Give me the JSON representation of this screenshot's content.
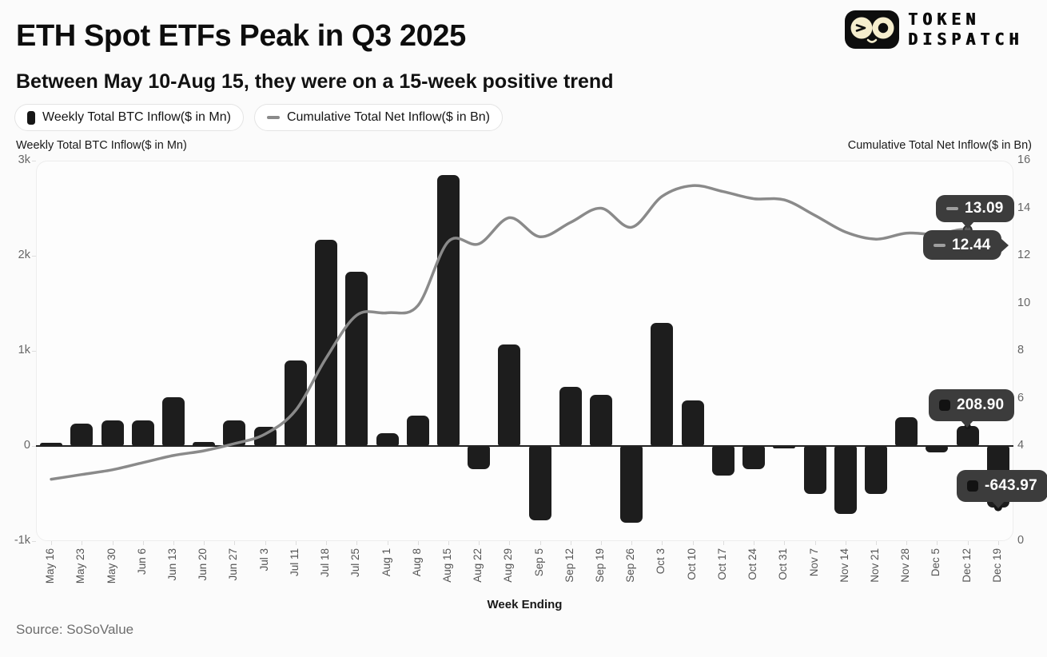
{
  "header": {
    "title": "ETH Spot ETFs Peak in Q3 2025",
    "subtitle": "Between May 10-Aug 15, they were on a 15-week positive trend",
    "brand": {
      "line1": "TOKEN",
      "line2": "DISPATCH"
    }
  },
  "legend": [
    {
      "label": "Weekly Total BTC Inflow($ in Mn)",
      "icon": "bar-swatch"
    },
    {
      "label": "Cumulative Total Net Inflow($ in Bn)",
      "icon": "line-swatch"
    }
  ],
  "axes": {
    "left_title": "Weekly Total BTC Inflow($ in Mn)",
    "right_title": "Cumulative Total Net Inflow($ in Bn)",
    "x_title": "Week Ending",
    "left_ticks": [
      "3k",
      "2k",
      "1k",
      "0",
      "-1k"
    ],
    "left_tick_values": [
      3000,
      2000,
      1000,
      0,
      -1000
    ],
    "right_ticks": [
      "16",
      "14",
      "12",
      "10",
      "8",
      "6",
      "4",
      "2",
      "0"
    ],
    "right_tick_values": [
      16,
      14,
      12,
      10,
      8,
      6,
      4,
      2,
      0
    ]
  },
  "annotations": {
    "line_dec12": {
      "label": "13.09",
      "icon": "dash"
    },
    "line_dec19": {
      "label": "12.44",
      "icon": "dash"
    },
    "bar_dec12": {
      "label": "208.90",
      "icon": "square"
    },
    "bar_dec19": {
      "label": "-643.97",
      "icon": "square"
    }
  },
  "source": "Source: SoSoValue",
  "chart_data": {
    "type": "bar",
    "title": "ETH Spot ETFs Peak in Q3 2025",
    "subtitle": "Between May 10-Aug 15, they were on a 15-week positive trend",
    "xlabel": "Week Ending",
    "left_ylabel": "Weekly Total BTC Inflow($ in Mn)",
    "right_ylabel": "Cumulative Total Net Inflow($ in Bn)",
    "left_ylim": [
      -1000,
      3000
    ],
    "right_ylim": [
      0,
      16
    ],
    "grid": false,
    "legend_position": "top-left",
    "colors": {
      "bar": "#1d1d1d",
      "line": "#8a8a8a",
      "tooltip": "#3c3c3c"
    },
    "categories": [
      "May 16",
      "May 23",
      "May 30",
      "Jun 6",
      "Jun 13",
      "Jun 20",
      "Jun 27",
      "Jul 3",
      "Jul 11",
      "Jul 18",
      "Jul 25",
      "Aug 1",
      "Aug 8",
      "Aug 15",
      "Aug 22",
      "Aug 29",
      "Sep 5",
      "Sep 12",
      "Sep 19",
      "Sep 26",
      "Oct 3",
      "Oct 10",
      "Oct 17",
      "Oct 24",
      "Oct 31",
      "Nov 7",
      "Nov 14",
      "Nov 21",
      "Nov 28",
      "Dec 5",
      "Dec 12",
      "Dec 19"
    ],
    "series": [
      {
        "name": "Weekly Total BTC Inflow($ in Mn)",
        "type": "bar",
        "axis": "left",
        "values": [
          30,
          235,
          270,
          265,
          515,
          40,
          270,
          200,
          895,
          2170,
          1835,
          135,
          320,
          2850,
          -245,
          1065,
          -785,
          625,
          535,
          -810,
          1290,
          475,
          -310,
          -245,
          -15,
          -505,
          -715,
          -505,
          300,
          -70,
          208.9,
          -643.97
        ]
      },
      {
        "name": "Cumulative Total Net Inflow($ in Bn)",
        "type": "line",
        "axis": "right",
        "values": [
          2.6,
          2.8,
          3.0,
          3.3,
          3.6,
          3.8,
          4.1,
          4.5,
          5.5,
          7.7,
          9.5,
          9.6,
          9.9,
          12.6,
          12.5,
          13.6,
          12.8,
          13.4,
          14.0,
          13.2,
          14.5,
          14.95,
          14.7,
          14.4,
          14.35,
          13.7,
          13.0,
          12.7,
          12.95,
          12.9,
          13.09,
          12.44
        ]
      }
    ]
  }
}
